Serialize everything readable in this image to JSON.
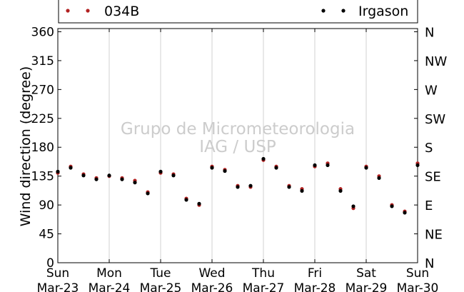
{
  "chart_data": {
    "type": "scatter",
    "title": "",
    "ylabel": "Wind direction (degree)",
    "xlabel": "",
    "ylim": [
      0,
      365
    ],
    "xlim": [
      "Mar-23",
      "Mar-30"
    ],
    "y_ticks": [
      0,
      45,
      90,
      135,
      180,
      225,
      270,
      315,
      360
    ],
    "x_ticks": [
      {
        "day": "Sun",
        "date": "Mar-23"
      },
      {
        "day": "Mon",
        "date": "Mar-24"
      },
      {
        "day": "Tue",
        "date": "Mar-25"
      },
      {
        "day": "Wed",
        "date": "Mar-26"
      },
      {
        "day": "Thu",
        "date": "Mar-27"
      },
      {
        "day": "Fri",
        "date": "Mar-28"
      },
      {
        "day": "Sat",
        "date": "Mar-29"
      },
      {
        "day": "Sun",
        "date": "Mar-30"
      }
    ],
    "compass_labels": [
      "N",
      "NE",
      "E",
      "SE",
      "S",
      "SW",
      "W",
      "NW",
      "N"
    ],
    "grid": "vertical",
    "legend": "top",
    "watermark": [
      "Grupo de Micrometeorologia",
      "IAG / USP"
    ],
    "series": [
      {
        "name": "034B",
        "color": "#b22222",
        "marker": "dot",
        "x": [
          "Mar-23",
          "Mar-23 06:00",
          "Mar-23 12:00",
          "Mar-23 18:00",
          "Mar-24",
          "Mar-24 06:00",
          "Mar-24 12:00",
          "Mar-24 18:00",
          "Mar-25",
          "Mar-25 06:00",
          "Mar-25 12:00",
          "Mar-25 18:00",
          "Mar-26",
          "Mar-26 06:00",
          "Mar-26 12:00",
          "Mar-26 18:00",
          "Mar-27",
          "Mar-27 06:00",
          "Mar-27 12:00",
          "Mar-27 18:00",
          "Mar-28",
          "Mar-28 06:00",
          "Mar-28 12:00",
          "Mar-28 18:00",
          "Mar-29",
          "Mar-29 06:00",
          "Mar-29 12:00",
          "Mar-29 18:00",
          "Mar-30"
        ],
        "y": [
          140,
          150,
          138,
          132,
          135,
          132,
          128,
          110,
          140,
          138,
          100,
          90,
          150,
          145,
          120,
          118,
          160,
          150,
          120,
          115,
          150,
          155,
          115,
          85,
          150,
          135,
          90,
          80,
          155
        ]
      },
      {
        "name": "Irgason",
        "color": "#000000",
        "marker": "dot",
        "x": [
          "Mar-23",
          "Mar-23 06:00",
          "Mar-23 12:00",
          "Mar-23 18:00",
          "Mar-24",
          "Mar-24 06:00",
          "Mar-24 12:00",
          "Mar-24 18:00",
          "Mar-25",
          "Mar-25 06:00",
          "Mar-25 12:00",
          "Mar-25 18:00",
          "Mar-26",
          "Mar-26 06:00",
          "Mar-26 12:00",
          "Mar-26 18:00",
          "Mar-27",
          "Mar-27 06:00",
          "Mar-27 12:00",
          "Mar-27 18:00",
          "Mar-28",
          "Mar-28 06:00",
          "Mar-28 12:00",
          "Mar-28 18:00",
          "Mar-29",
          "Mar-29 06:00",
          "Mar-29 12:00",
          "Mar-29 18:00",
          "Mar-30"
        ],
        "y": [
          142,
          148,
          136,
          130,
          136,
          130,
          125,
          108,
          142,
          136,
          98,
          92,
          148,
          143,
          118,
          120,
          162,
          148,
          118,
          112,
          152,
          152,
          112,
          88,
          148,
          132,
          88,
          78,
          152
        ]
      }
    ]
  }
}
